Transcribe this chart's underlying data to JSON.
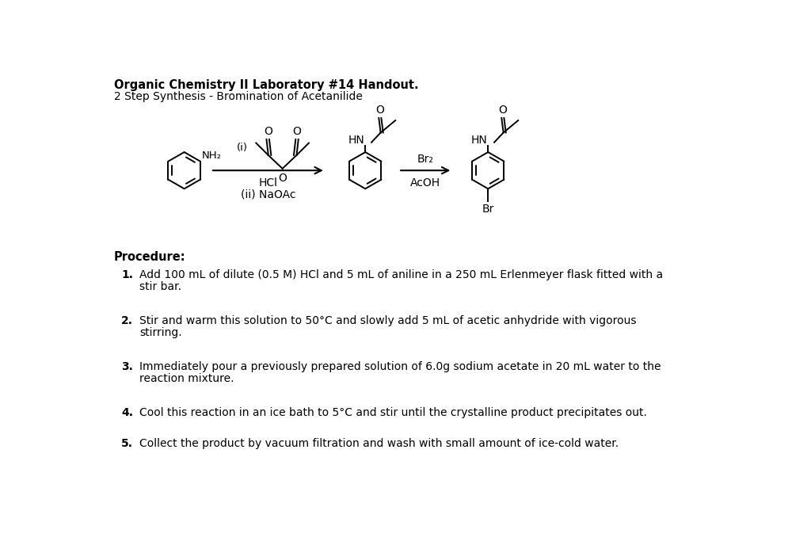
{
  "title": "Organic Chemistry II Laboratory #14 Handout.",
  "subtitle": "2 Step Synthesis - Bromination of Acetanilide",
  "background_color": "#ffffff",
  "text_color": "#000000",
  "procedure_title": "Procedure:",
  "steps": [
    "Add 100 mL of dilute (0.5 M) HCl and 5 mL of aniline in a 250 mL Erlenmeyer flask fitted with a\nstir bar.",
    "Stir and warm this solution to 50°C and slowly add 5 mL of acetic anhydride with vigorous\nstirring.",
    "Immediately pour a previously prepared solution of 6.0g sodium acetate in 20 mL water to the\nreaction mixture.",
    "Cool this reaction in an ice bath to 5°C and stir until the crystalline product precipitates out.",
    "Collect the product by vacuum filtration and wash with small amount of ice-cold water."
  ],
  "reagent1_label": "(i)",
  "reagent1_sublabel1": "HCl",
  "reagent1_sublabel2": "(ii) NaOAc",
  "reagent2_label1": "Br₂",
  "reagent2_label2": "AcOH",
  "nh2_label": "NH₂",
  "hn_label1": "HN",
  "hn_label2": "HN",
  "br_label": "Br",
  "o_label": "O"
}
